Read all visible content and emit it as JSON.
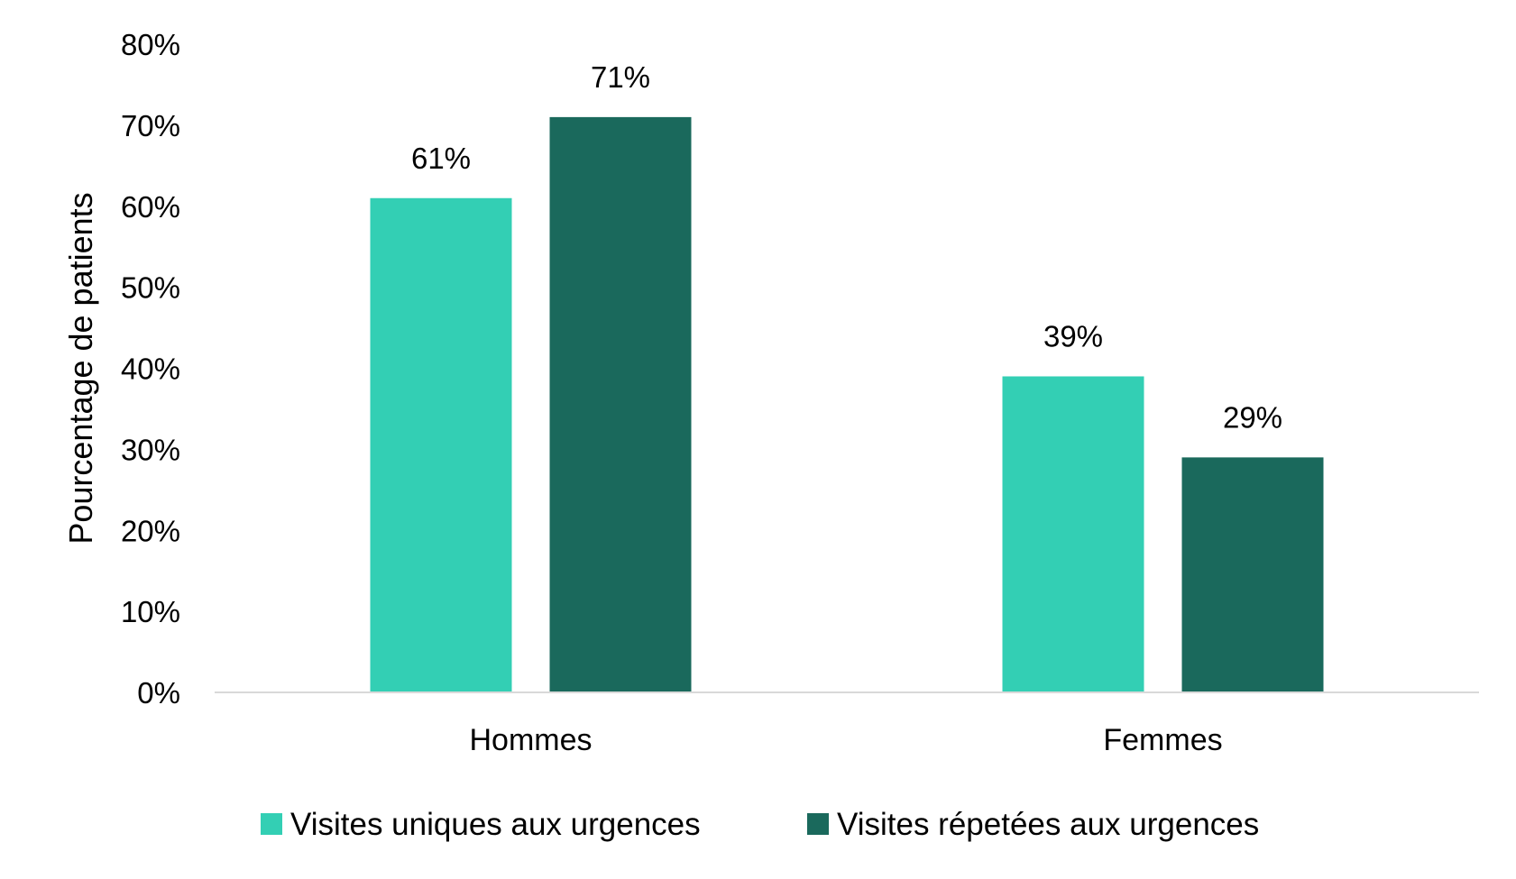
{
  "chart_data": {
    "type": "bar",
    "ylabel": "Pourcentage de patients",
    "xlabel": "",
    "ylim": [
      0,
      80
    ],
    "y_ticks": [
      0,
      10,
      20,
      30,
      40,
      50,
      60,
      70,
      80
    ],
    "y_tick_labels": [
      "0%",
      "10%",
      "20%",
      "30%",
      "40%",
      "50%",
      "60%",
      "70%",
      "80%"
    ],
    "categories": [
      "Hommes",
      "Femmes"
    ],
    "series": [
      {
        "name": "Visites uniques aux urgences",
        "color": "#33cfb4",
        "values": [
          61,
          39
        ],
        "labels": [
          "61%",
          "39%"
        ]
      },
      {
        "name": "Visites répetées aux urgences",
        "color": "#1a695c",
        "values": [
          71,
          29
        ],
        "labels": [
          "71%",
          "29%"
        ]
      }
    ],
    "grid": false,
    "legend": "bottom"
  }
}
